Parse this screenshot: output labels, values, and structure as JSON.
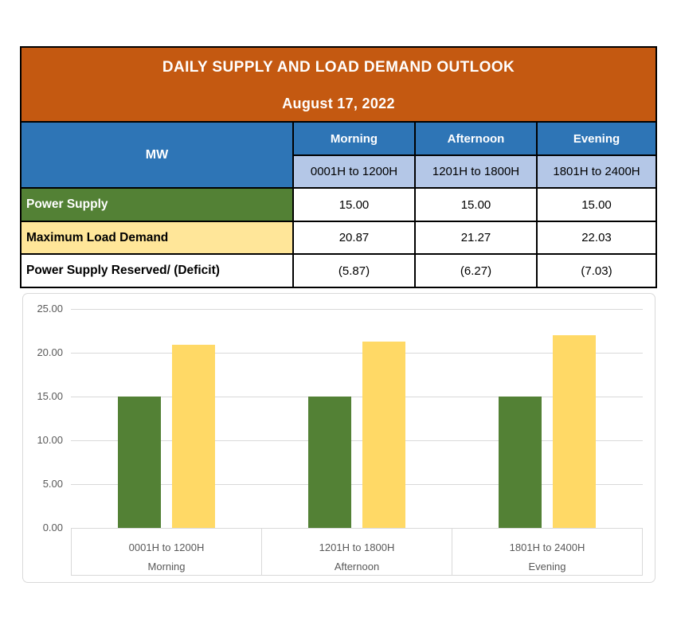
{
  "table": {
    "title": "DAILY SUPPLY AND LOAD DEMAND OUTLOOK",
    "date": "August 17, 2022",
    "unit_header": "MW",
    "periods": [
      {
        "label": "Morning",
        "range": "0001H to 1200H"
      },
      {
        "label": "Afternoon",
        "range": "1201H to 1800H"
      },
      {
        "label": "Evening",
        "range": "1801H to 2400H"
      }
    ],
    "rows": [
      {
        "label": "Power Supply",
        "values": [
          "15.00",
          "15.00",
          "15.00"
        ]
      },
      {
        "label": "Maximum Load Demand",
        "values": [
          "20.87",
          "21.27",
          "22.03"
        ]
      },
      {
        "label": "Power Supply Reserved/ (Deficit)",
        "values": [
          "(5.87)",
          "(6.27)",
          "(7.03)"
        ]
      }
    ]
  },
  "chart_data": {
    "type": "bar",
    "categories": [
      {
        "range": "0001H to 1200H",
        "period": "Morning"
      },
      {
        "range": "1201H to 1800H",
        "period": "Afternoon"
      },
      {
        "range": "1801H to 2400H",
        "period": "Evening"
      }
    ],
    "series": [
      {
        "name": "Power Supply",
        "color": "#538135",
        "values": [
          15.0,
          15.0,
          15.0
        ]
      },
      {
        "name": "Maximum Load Demand",
        "color": "#FFD966",
        "values": [
          20.87,
          21.27,
          22.03
        ]
      }
    ],
    "title": "",
    "xlabel": "",
    "ylabel": "",
    "ylim": [
      0,
      25
    ],
    "ytick_step": 5,
    "ytick_labels": [
      "0.00",
      "5.00",
      "10.00",
      "15.00",
      "20.00",
      "25.00"
    ],
    "grid": true,
    "legend_position": "none"
  },
  "colors": {
    "header_orange": "#C45911",
    "header_blue": "#2E75B6",
    "subheader_light_blue": "#B4C7E7",
    "row_green": "#538135",
    "row_yellow": "#FFE699",
    "bar_green": "#538135",
    "bar_yellow": "#FFD966",
    "gridline_gray": "#D9D9D9",
    "chart_text_gray": "#595959",
    "table_border": "#000000"
  }
}
